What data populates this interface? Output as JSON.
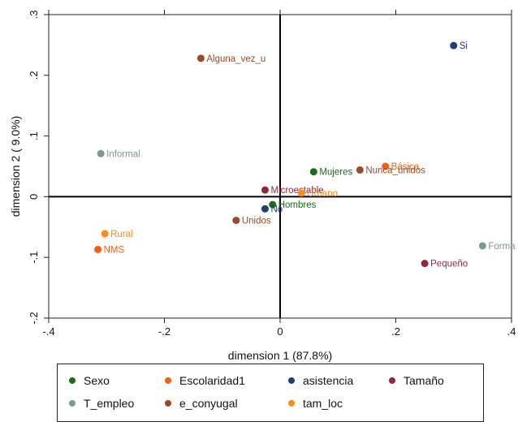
{
  "chart_data": {
    "type": "scatter",
    "xlabel": "dimension 1 (87.8%)",
    "ylabel": "dimension 2 ( 9.0%)",
    "xlim": [
      -0.4,
      0.4
    ],
    "ylim": [
      -0.2,
      0.3
    ],
    "xticks": [
      "-.4",
      "-.2",
      "0",
      ".2",
      ".4"
    ],
    "yticks": [
      "-.2",
      "-.1",
      "0",
      ".1",
      ".2",
      ".3"
    ],
    "reference_lines": {
      "x": 0,
      "y": 0
    },
    "legend_position": "bottom",
    "series": [
      {
        "name": "Sexo",
        "color": "#1a6b1a",
        "points": [
          {
            "label": "Mujeres",
            "x": 0.058,
            "y": 0.041
          },
          {
            "label": "Hombres",
            "x": -0.013,
            "y": -0.013
          }
        ]
      },
      {
        "name": "Escolaridad1",
        "color": "#ff5a14",
        "points": [
          {
            "label": "Básica",
            "x": 0.182,
            "y": 0.05
          },
          {
            "label": "NMS",
            "x": -0.315,
            "y": -0.087
          }
        ]
      },
      {
        "name": "asistencia",
        "color": "#1f3f6e",
        "points": [
          {
            "label": "Si",
            "x": 0.3,
            "y": 0.249
          },
          {
            "label": "No",
            "x": -0.026,
            "y": -0.02
          }
        ]
      },
      {
        "name": "Tamaño",
        "color": "#8c2a3c",
        "points": [
          {
            "label": "Microestable",
            "x": -0.026,
            "y": 0.011
          },
          {
            "label": "Pequeño",
            "x": 0.25,
            "y": -0.11
          }
        ]
      },
      {
        "name": "T_empleo",
        "color": "#7a9a8c",
        "points": [
          {
            "label": "Informal",
            "x": -0.31,
            "y": 0.071
          },
          {
            "label": "Forma",
            "x": 0.35,
            "y": -0.081
          }
        ]
      },
      {
        "name": "e_conyugal",
        "color": "#9a4a28",
        "points": [
          {
            "label": "Alguna_vez_u",
            "x": -0.137,
            "y": 0.228
          },
          {
            "label": "Nunca_unidos",
            "x": 0.138,
            "y": 0.044
          },
          {
            "label": "Unidos",
            "x": -0.076,
            "y": -0.039
          }
        ]
      },
      {
        "name": "tam_loc",
        "color": "#ff8c14",
        "points": [
          {
            "label": "Urbano",
            "x": 0.037,
            "y": 0.006
          },
          {
            "label": "Rural",
            "x": -0.303,
            "y": -0.061
          }
        ]
      }
    ]
  }
}
